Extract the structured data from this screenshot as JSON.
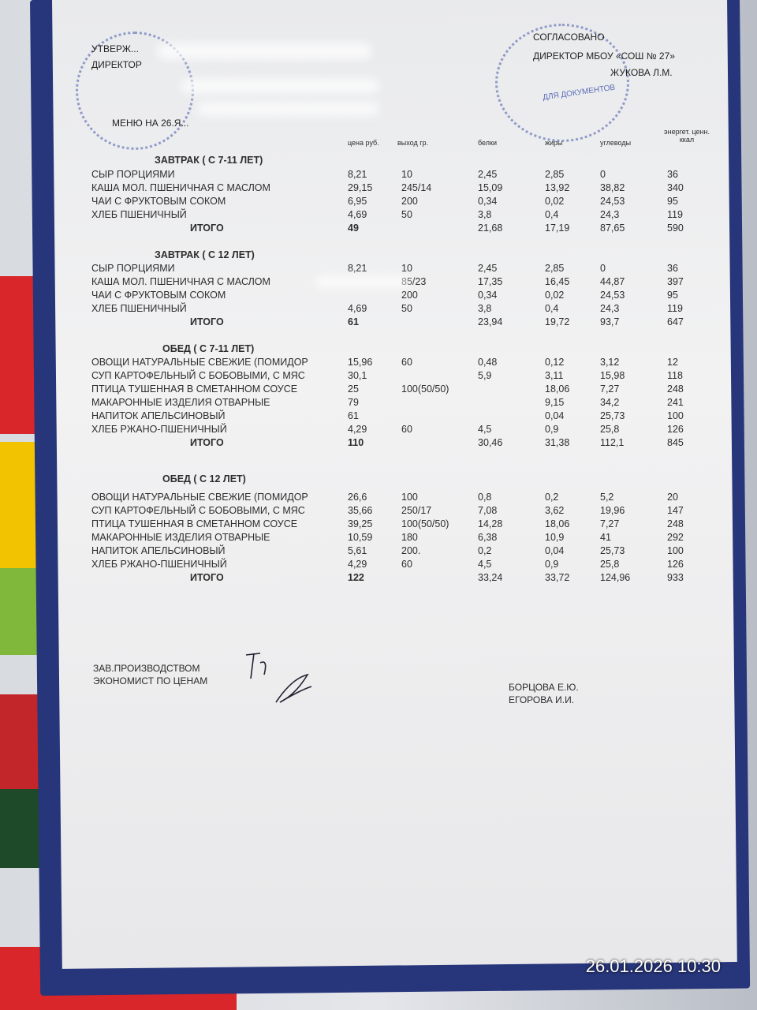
{
  "header": {
    "left_lines": [
      "УТВЕРЖ...",
      "ДИРЕКТОР"
    ],
    "menu_title": "МЕНЮ НА 26.Я...",
    "right_title": "СОГЛАСОВАНО",
    "right_line": "ДИРЕКТОР МБОУ «СОШ № 27»",
    "right_name": "ЖУКОВА Л.М.",
    "stamp_text": "ДЛЯ ДОКУМЕНТОВ"
  },
  "columns": [
    "цена руб.",
    "выход гр.",
    "белки",
    "жиры",
    "углеводы",
    "энергет. ценн. ккал"
  ],
  "sections": [
    {
      "title": "ЗАВТРАК ( С 7-11 ЛЕТ)",
      "rows": [
        [
          "СЫР ПОРЦИЯМИ",
          "8,21",
          "10",
          "2,45",
          "2,85",
          "0",
          "36"
        ],
        [
          "КАША МОЛ. ПШЕНИЧНАЯ  С МАСЛОМ",
          "29,15",
          "245/14",
          "15,09",
          "13,92",
          "38,82",
          "340"
        ],
        [
          "ЧАИ С ФРУКТОВЫМ СОКОМ",
          "6,95",
          "200",
          "0,34",
          "0,02",
          "24,53",
          "95"
        ],
        [
          "ХЛЕБ ПШЕНИЧНЫЙ",
          "4,69",
          "50",
          "3,8",
          "0,4",
          "24,3",
          "119"
        ]
      ],
      "total": [
        "ИТОГО",
        "49",
        "",
        "21,68",
        "17,19",
        "87,65",
        "590"
      ]
    },
    {
      "title": "ЗАВТРАК ( С 12 ЛЕТ)",
      "rows": [
        [
          "СЫР ПОРЦИЯМИ",
          "8,21",
          "10",
          "2,45",
          "2,85",
          "0",
          "36"
        ],
        [
          "КАША МОЛ. ПШЕНИЧНАЯ  С МАСЛОМ",
          "",
          "85/23",
          "17,35",
          "16,45",
          "44,87",
          "397"
        ],
        [
          "ЧАИ С ФРУКТОВЫМ СОКОМ",
          "",
          "200",
          "0,34",
          "0,02",
          "24,53",
          "95"
        ],
        [
          "ХЛЕБ ПШЕНИЧНЫЙ",
          "4,69",
          "50",
          "3,8",
          "0,4",
          "24,3",
          "119"
        ]
      ],
      "total": [
        "ИТОГО",
        "61",
        "",
        "23,94",
        "19,72",
        "93,7",
        "647"
      ]
    },
    {
      "title": "ОБЕД ( С 7-11 ЛЕТ)",
      "rows": [
        [
          "ОВОЩИ НАТУРАЛЬНЫЕ СВЕЖИЕ (ПОМИДОР",
          "15,96",
          "60",
          "0,48",
          "0,12",
          "3,12",
          "12"
        ],
        [
          "СУП КАРТОФЕЛЬНЫЙ С БОБОВЫМИ, С МЯС",
          "30,1",
          "",
          "5,9",
          "3,11",
          "15,98",
          "118"
        ],
        [
          "ПТИЦА ТУШЕННАЯ В СМЕТАННОМ СОУСЕ",
          "25",
          "100(50/50)",
          "",
          "18,06",
          "7,27",
          "248"
        ],
        [
          "МАКАРОННЫЕ ИЗДЕЛИЯ ОТВАРНЫЕ",
          "79",
          "",
          "",
          "9,15",
          "34,2",
          "241"
        ],
        [
          "НАПИТОК АПЕЛЬСИНОВЫЙ",
          "61",
          "",
          "",
          "0,04",
          "25,73",
          "100"
        ],
        [
          "ХЛЕБ РЖАНО-ПШЕНИЧНЫЙ",
          "4,29",
          "60",
          "4,5",
          "0,9",
          "25,8",
          "126"
        ]
      ],
      "total": [
        "ИТОГО",
        "110",
        "",
        "30,46",
        "31,38",
        "112,1",
        "845"
      ]
    },
    {
      "title": "ОБЕД ( С 12 ЛЕТ)",
      "rows": [
        [
          "ОВОЩИ НАТУРАЛЬНЫЕ СВЕЖИЕ (ПОМИДОР",
          "26,6",
          "100",
          "0,8",
          "0,2",
          "5,2",
          "20"
        ],
        [
          "СУП КАРТОФЕЛЬНЫЙ С БОБОВЫМИ, С МЯС",
          "35,66",
          "250/17",
          "7,08",
          "3,62",
          "19,96",
          "147"
        ],
        [
          "ПТИЦА ТУШЕННАЯ В СМЕТАННОМ СОУСЕ",
          "39,25",
          "100(50/50)",
          "14,28",
          "18,06",
          "7,27",
          "248"
        ],
        [
          "МАКАРОННЫЕ ИЗДЕЛИЯ ОТВАРНЫЕ",
          "10,59",
          "180",
          "6,38",
          "10,9",
          "41",
          "292"
        ],
        [
          "НАПИТОК АПЕЛЬСИНОВЫЙ",
          "5,61",
          "200.",
          "0,2",
          "0,04",
          "25,73",
          "100"
        ],
        [
          "ХЛЕБ РЖАНО-ПШЕНИЧНЫЙ",
          "4,29",
          "60",
          "4,5",
          "0,9",
          "25,8",
          "126"
        ]
      ],
      "total": [
        "ИТОГО",
        "122",
        "",
        "33,24",
        "33,72",
        "124,96",
        "933"
      ]
    }
  ],
  "footer": {
    "left": [
      "ЗАВ.ПРОИЗВОДСТВОМ",
      "ЭКОНОМИСТ ПО ЦЕНАМ"
    ],
    "right": [
      "БОРЦОВА Е.Ю.",
      "ЕГОРОВА И.И."
    ]
  },
  "photo_timestamp": "26.01.2026 10:30",
  "colors": {
    "frame": "#27357a",
    "stamp": "#5a6cb8",
    "text": "#2b2b2b"
  }
}
